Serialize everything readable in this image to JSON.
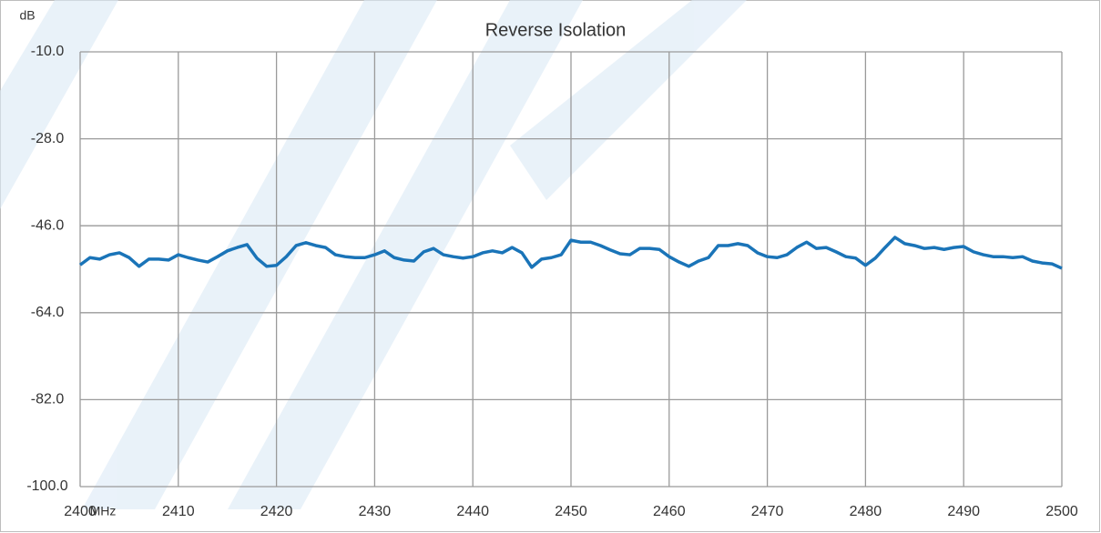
{
  "chart_data": {
    "type": "line",
    "title": "Reverse Isolation",
    "y_label": "dB",
    "x_label": "MHz",
    "x": [
      2400,
      2401,
      2402,
      2403,
      2404,
      2405,
      2406,
      2407,
      2408,
      2409,
      2410,
      2411,
      2412,
      2413,
      2414,
      2415,
      2416,
      2417,
      2418,
      2419,
      2420,
      2421,
      2422,
      2423,
      2424,
      2425,
      2426,
      2427,
      2428,
      2429,
      2430,
      2431,
      2432,
      2433,
      2434,
      2435,
      2436,
      2437,
      2438,
      2439,
      2440,
      2441,
      2442,
      2443,
      2444,
      2445,
      2446,
      2447,
      2448,
      2449,
      2450,
      2451,
      2452,
      2453,
      2454,
      2455,
      2456,
      2457,
      2458,
      2459,
      2460,
      2461,
      2462,
      2463,
      2464,
      2465,
      2466,
      2467,
      2468,
      2469,
      2470,
      2471,
      2472,
      2473,
      2474,
      2475,
      2476,
      2477,
      2478,
      2479,
      2480,
      2481,
      2482,
      2483,
      2484,
      2485,
      2486,
      2487,
      2488,
      2489,
      2490,
      2491,
      2492,
      2493,
      2494,
      2495,
      2496,
      2497,
      2498,
      2499,
      2500
    ],
    "series": [
      {
        "name": "Reverse Isolation",
        "color": "#1a74b8",
        "values": [
          -54.1,
          -52.6,
          -52.9,
          -52.0,
          -51.6,
          -52.6,
          -54.4,
          -52.9,
          -52.9,
          -53.1,
          -52.0,
          -52.6,
          -53.1,
          -53.5,
          -52.4,
          -51.2,
          -50.5,
          -49.9,
          -52.7,
          -54.4,
          -54.2,
          -52.4,
          -50.1,
          -49.5,
          -50.1,
          -50.5,
          -52.0,
          -52.4,
          -52.6,
          -52.6,
          -52.0,
          -51.2,
          -52.6,
          -53.1,
          -53.3,
          -51.4,
          -50.7,
          -52.0,
          -52.4,
          -52.7,
          -52.4,
          -51.6,
          -51.2,
          -51.6,
          -50.5,
          -51.6,
          -54.6,
          -52.9,
          -52.6,
          -52.0,
          -49.0,
          -49.4,
          -49.4,
          -50.1,
          -51.0,
          -51.8,
          -52.0,
          -50.7,
          -50.7,
          -50.9,
          -52.4,
          -53.5,
          -54.4,
          -53.3,
          -52.6,
          -50.1,
          -50.1,
          -49.7,
          -50.1,
          -51.6,
          -52.4,
          -52.6,
          -52.0,
          -50.5,
          -49.4,
          -50.7,
          -50.5,
          -51.4,
          -52.4,
          -52.7,
          -54.2,
          -52.7,
          -50.5,
          -48.4,
          -49.7,
          -50.1,
          -50.7,
          -50.5,
          -50.9,
          -50.5,
          -50.3,
          -51.4,
          -52.0,
          -52.4,
          -52.4,
          -52.6,
          -52.4,
          -53.3,
          -53.7,
          -53.9,
          -54.8
        ]
      }
    ],
    "xlim": [
      2400,
      2500
    ],
    "xticks": [
      2400,
      2410,
      2420,
      2430,
      2440,
      2450,
      2460,
      2470,
      2480,
      2490,
      2500
    ],
    "ylim": [
      -100,
      -10
    ],
    "yticks": [
      {
        "value": -100,
        "label": "-100.0"
      },
      {
        "value": -82,
        "label": "-82.0"
      },
      {
        "value": -64,
        "label": "-64.0"
      },
      {
        "value": -46,
        "label": "-46.0"
      },
      {
        "value": -28,
        "label": "-28.0"
      },
      {
        "value": -10,
        "label": "-10.0"
      }
    ],
    "grid": true
  }
}
